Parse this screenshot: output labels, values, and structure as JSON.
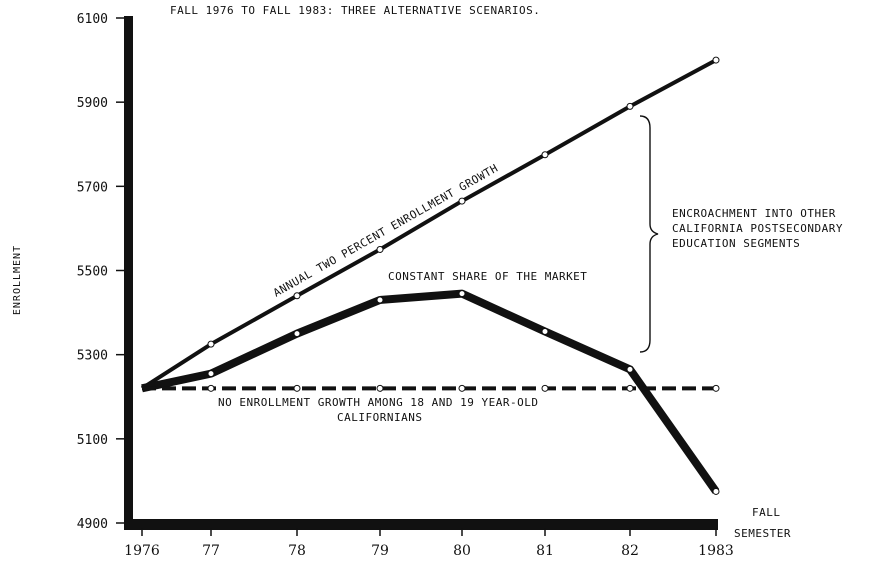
{
  "chart_data": {
    "type": "line",
    "title": "FALL 1976 TO FALL 1983: THREE ALTERNATIVE SCENARIOS.",
    "xlabel_line1": "FALL",
    "xlabel_line2": "SEMESTER",
    "ylabel": "ENROLLMENT",
    "categories": [
      "1976",
      "77",
      "78",
      "79",
      "80",
      "81",
      "82",
      "1983"
    ],
    "ylim": [
      4900,
      6100
    ],
    "yticks": [
      "6100",
      "5900",
      "5700",
      "5500",
      "5300",
      "5100",
      "4900"
    ],
    "series": [
      {
        "name": "ANNUAL TWO PERCENT ENROLLMENT GROWTH",
        "values": [
          5220,
          5325,
          5440,
          5550,
          5665,
          5775,
          5890,
          6000
        ]
      },
      {
        "name": "CONSTANT SHARE OF THE MARKET",
        "values": [
          5220,
          5255,
          5350,
          5430,
          5445,
          5355,
          5265,
          4975
        ]
      },
      {
        "name": "NO ENROLLMENT GROWTH AMONG 18 AND 19 YEAR-OLD CALIFORNIANS",
        "values": [
          5220,
          5220,
          5220,
          5220,
          5220,
          5220,
          5220,
          5220
        ]
      }
    ],
    "annotation": {
      "lines": [
        "ENCROACHMENT INTO OTHER",
        "CALIFORNIA POSTSECONDARY",
        "EDUCATION SEGMENTS"
      ]
    },
    "series_labels": {
      "constant_line1": "CONSTANT SHARE OF THE MARKET",
      "flat_line1": "NO ENROLLMENT GROWTH AMONG 18 AND 19 YEAR-OLD",
      "flat_line2": "CALIFORNIANS"
    },
    "grid": false
  }
}
